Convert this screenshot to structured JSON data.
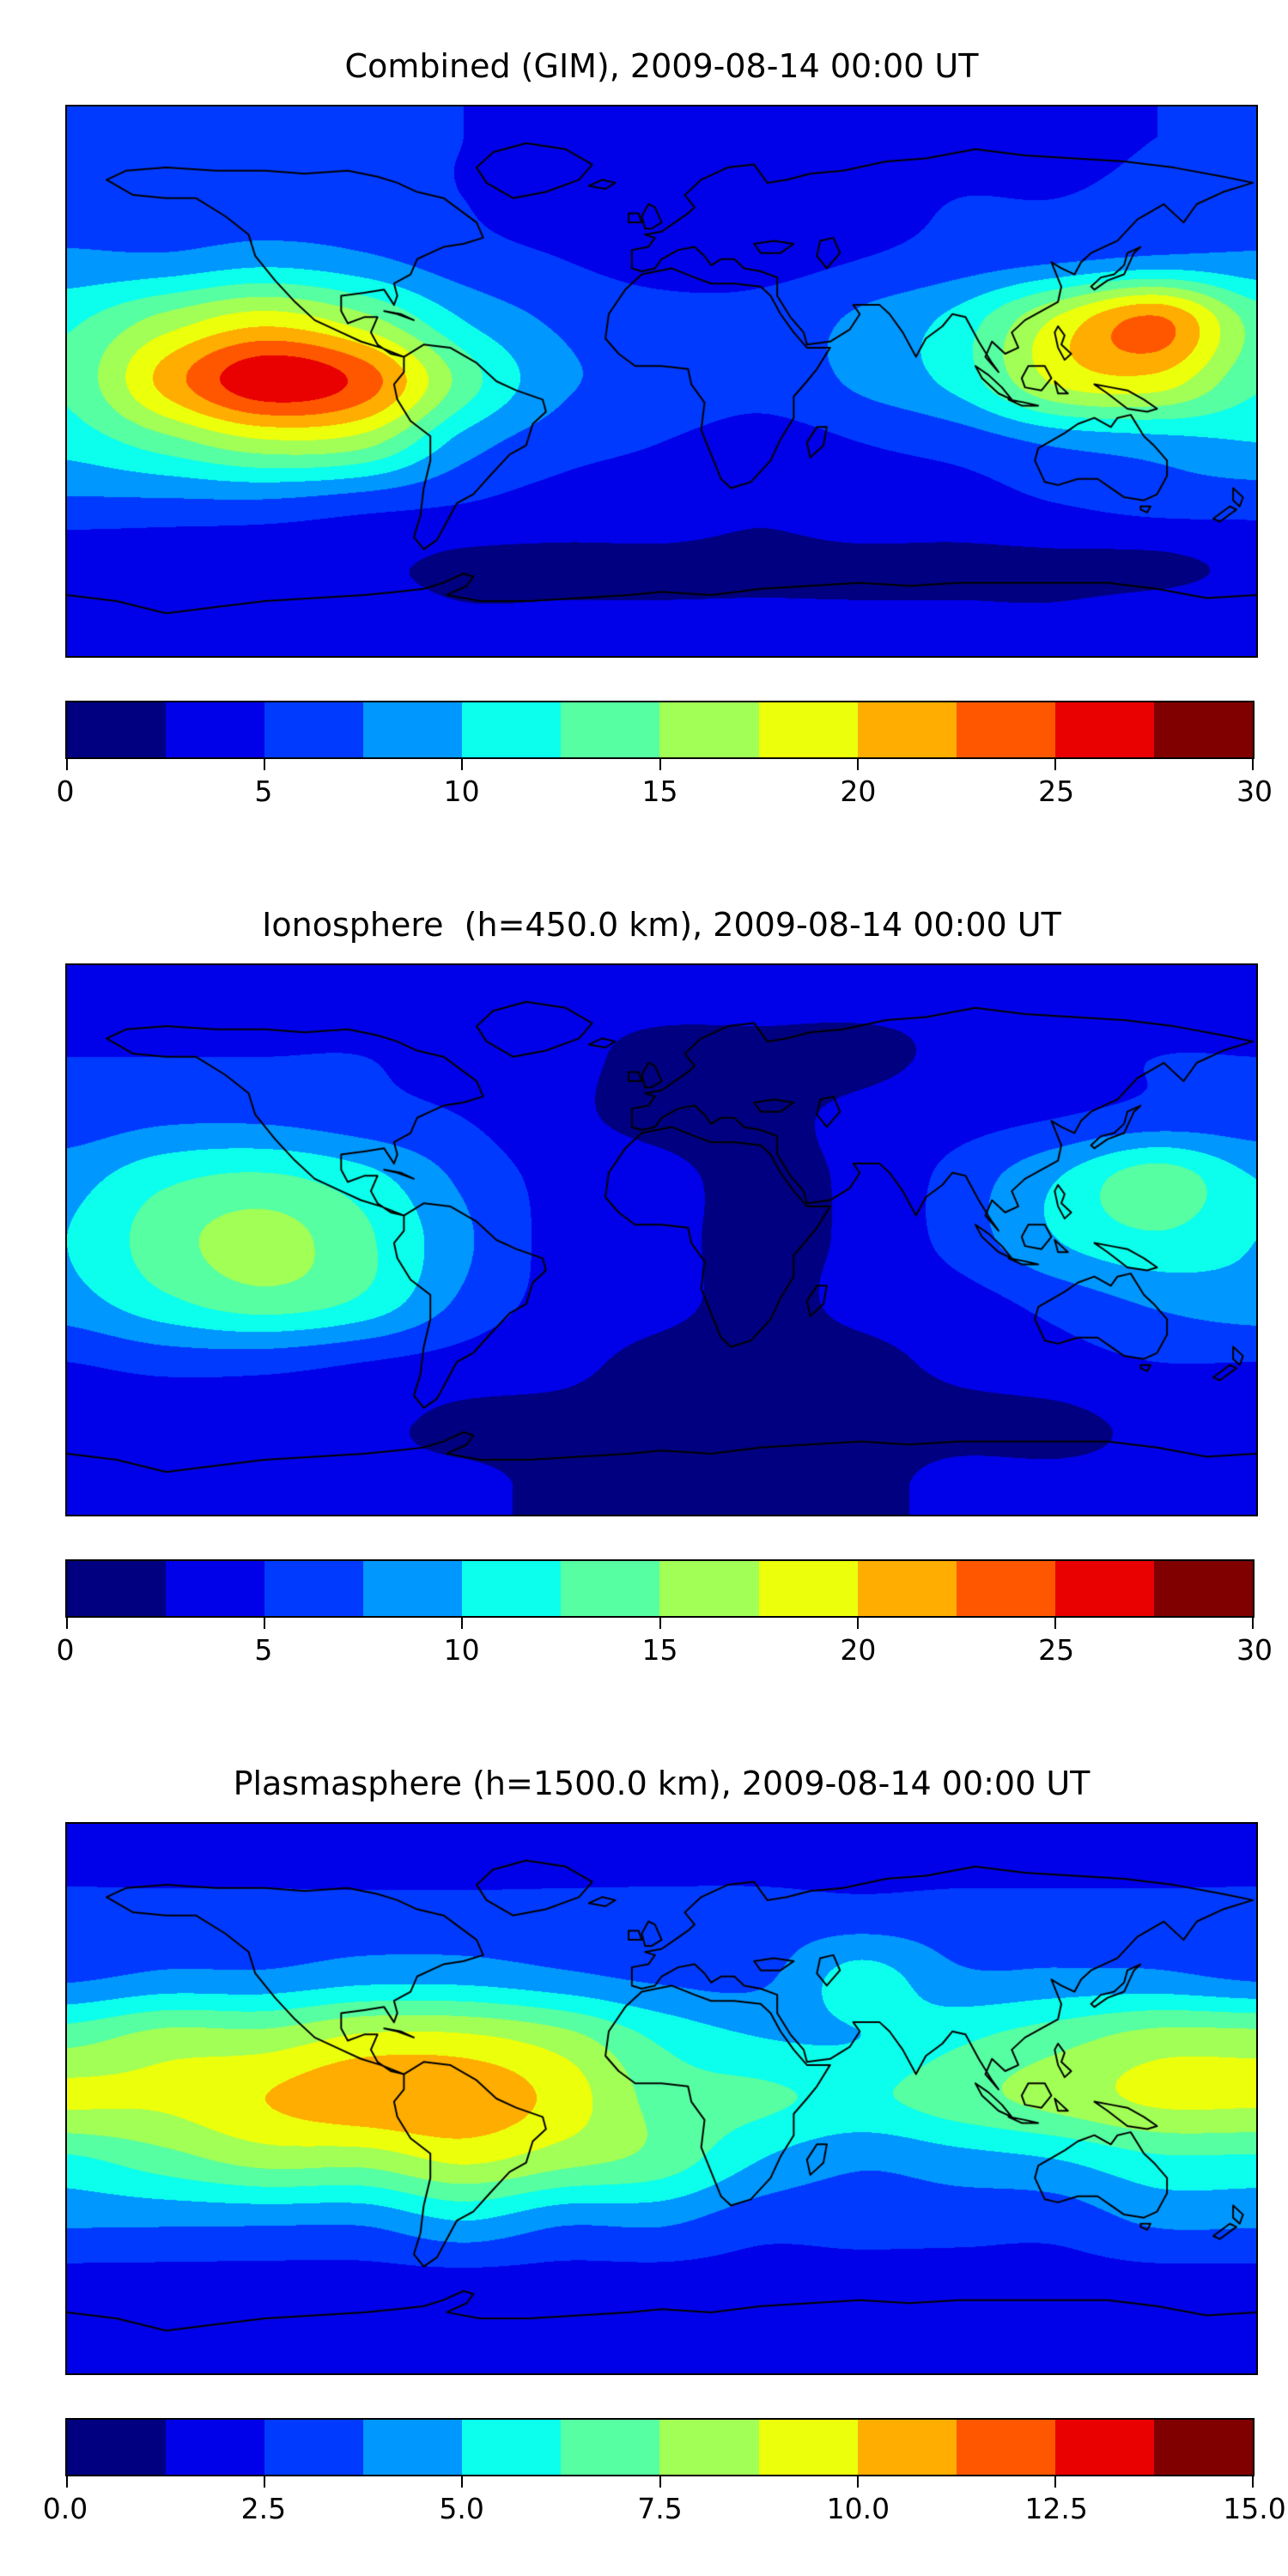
{
  "figure": {
    "background": "#ffffff",
    "coastline_color": "#000000",
    "colormap": "jet",
    "palette_12": [
      "#000080",
      "#0000e9",
      "#003aff",
      "#0097ff",
      "#0bffec",
      "#56ffa1",
      "#a1ff56",
      "#ecff0b",
      "#ffad00",
      "#ff5700",
      "#e90000",
      "#800000"
    ]
  },
  "chart_data": [
    {
      "type": "heatmap",
      "title": "Combined (GIM), 2009-08-14 00:00 UT",
      "projection": "equirectangular",
      "lon_range": [
        -180,
        180
      ],
      "lat_range": [
        -90,
        90
      ],
      "vmin": 0,
      "vmax": 30,
      "contour_interval": 2.5,
      "colorbar_ticks": [
        "0",
        "5",
        "10",
        "15",
        "20",
        "25",
        "30"
      ],
      "grid_lon": [
        -180,
        -150,
        -120,
        -90,
        -60,
        -30,
        0,
        30,
        60,
        90,
        120,
        150,
        180
      ],
      "grid_lat": [
        80,
        60,
        40,
        20,
        0,
        -20,
        -40,
        -60,
        -80
      ],
      "values": [
        [
          5,
          5,
          5,
          5,
          5,
          4,
          3,
          3,
          3,
          4,
          4,
          5,
          5
        ],
        [
          6,
          6,
          6,
          6,
          5,
          4,
          3,
          3,
          4,
          5,
          5,
          6,
          6
        ],
        [
          8,
          8,
          9,
          8,
          6,
          5,
          4,
          4,
          5,
          6,
          7,
          8,
          8
        ],
        [
          12,
          16,
          19,
          16,
          10,
          7,
          6,
          6,
          8,
          11,
          18,
          23,
          14
        ],
        [
          13,
          21,
          27,
          24,
          14,
          8,
          7,
          6,
          8,
          11,
          18,
          19,
          13
        ],
        [
          11,
          14,
          17,
          16,
          9,
          6,
          5,
          4,
          5,
          6,
          8,
          9,
          10
        ],
        [
          7,
          7,
          7,
          6,
          5,
          4,
          4,
          3,
          4,
          4,
          5,
          6,
          6
        ],
        [
          3,
          3,
          3,
          3,
          2,
          2,
          2,
          2,
          2,
          2,
          2,
          2,
          3
        ],
        [
          4,
          4,
          4,
          4,
          3,
          3,
          3,
          3,
          3,
          3,
          3,
          4,
          4
        ]
      ]
    },
    {
      "type": "heatmap",
      "title": "Ionosphere  (h=450.0 km), 2009-08-14 00:00 UT",
      "projection": "equirectangular",
      "lon_range": [
        -180,
        180
      ],
      "lat_range": [
        -90,
        90
      ],
      "vmin": 0,
      "vmax": 30,
      "contour_interval": 2.5,
      "colorbar_ticks": [
        "0",
        "5",
        "10",
        "15",
        "20",
        "25",
        "30"
      ],
      "grid_lon": [
        -180,
        -150,
        -120,
        -90,
        -60,
        -30,
        0,
        30,
        60,
        90,
        120,
        150,
        180
      ],
      "grid_lat": [
        80,
        60,
        40,
        20,
        0,
        -20,
        -40,
        -60,
        -80
      ],
      "values": [
        [
          4,
          4,
          4,
          4,
          4,
          3,
          3,
          3,
          3,
          3,
          4,
          4,
          4
        ],
        [
          5,
          5,
          5,
          5,
          4,
          3,
          2,
          2,
          2,
          3,
          4,
          5,
          5
        ],
        [
          6,
          7,
          7,
          6,
          5,
          3,
          2,
          2,
          3,
          4,
          5,
          6,
          6
        ],
        [
          9,
          12,
          13,
          11,
          7,
          4,
          3,
          2,
          3,
          6,
          10,
          14,
          10
        ],
        [
          10,
          14,
          16,
          13,
          8,
          4,
          3,
          2,
          3,
          6,
          10,
          12,
          10
        ],
        [
          9,
          12,
          14,
          12,
          7,
          4,
          3,
          2,
          3,
          4,
          6,
          8,
          9
        ],
        [
          5,
          6,
          6,
          5,
          4,
          3,
          2,
          2,
          2,
          3,
          4,
          5,
          5
        ],
        [
          3,
          3,
          3,
          3,
          2,
          2,
          2,
          2,
          2,
          2,
          2,
          3,
          3
        ],
        [
          3,
          3,
          3,
          3,
          3,
          2,
          2,
          2,
          2,
          3,
          3,
          3,
          3
        ]
      ]
    },
    {
      "type": "heatmap",
      "title": "Plasmasphere (h=1500.0 km), 2009-08-14 00:00 UT",
      "projection": "equirectangular",
      "lon_range": [
        -180,
        180
      ],
      "lat_range": [
        -90,
        90
      ],
      "vmin": 0,
      "vmax": 15,
      "contour_interval": 1.25,
      "colorbar_ticks": [
        "0.0",
        "2.5",
        "5.0",
        "7.5",
        "10.0",
        "12.5",
        "15.0"
      ],
      "grid_lon": [
        -180,
        -150,
        -120,
        -90,
        -60,
        -30,
        0,
        30,
        60,
        90,
        120,
        150,
        180
      ],
      "grid_lat": [
        80,
        60,
        40,
        20,
        0,
        -20,
        -40,
        -60,
        -80
      ],
      "values": [
        [
          2,
          2,
          2,
          2,
          2,
          2,
          2,
          2,
          2,
          2,
          2,
          2,
          2
        ],
        [
          3,
          3,
          3,
          3,
          3,
          3,
          3,
          3,
          3,
          3,
          3,
          3,
          3
        ],
        [
          3.5,
          4,
          4,
          4.5,
          4.5,
          4,
          3.5,
          3.5,
          5.5,
          4,
          4,
          4,
          3.5
        ],
        [
          7,
          8,
          8,
          9,
          9,
          8,
          6,
          5,
          5,
          6,
          7,
          8,
          8
        ],
        [
          9,
          9,
          10,
          11,
          11,
          9.5,
          7,
          6.5,
          6,
          7,
          8,
          9,
          9
        ],
        [
          6,
          7,
          8,
          8,
          9,
          8,
          7,
          5,
          4,
          4.5,
          5,
          6,
          6
        ],
        [
          4,
          4,
          4,
          4,
          5,
          4,
          4,
          3,
          3,
          3,
          3,
          4,
          4
        ],
        [
          2,
          2,
          2,
          2,
          2,
          2,
          2,
          2,
          2,
          2,
          2,
          2,
          2
        ],
        [
          1.5,
          1.5,
          1.5,
          1.5,
          1.5,
          1.5,
          1.5,
          1.5,
          1.5,
          1.5,
          1.5,
          1.5,
          1.5
        ]
      ]
    }
  ]
}
